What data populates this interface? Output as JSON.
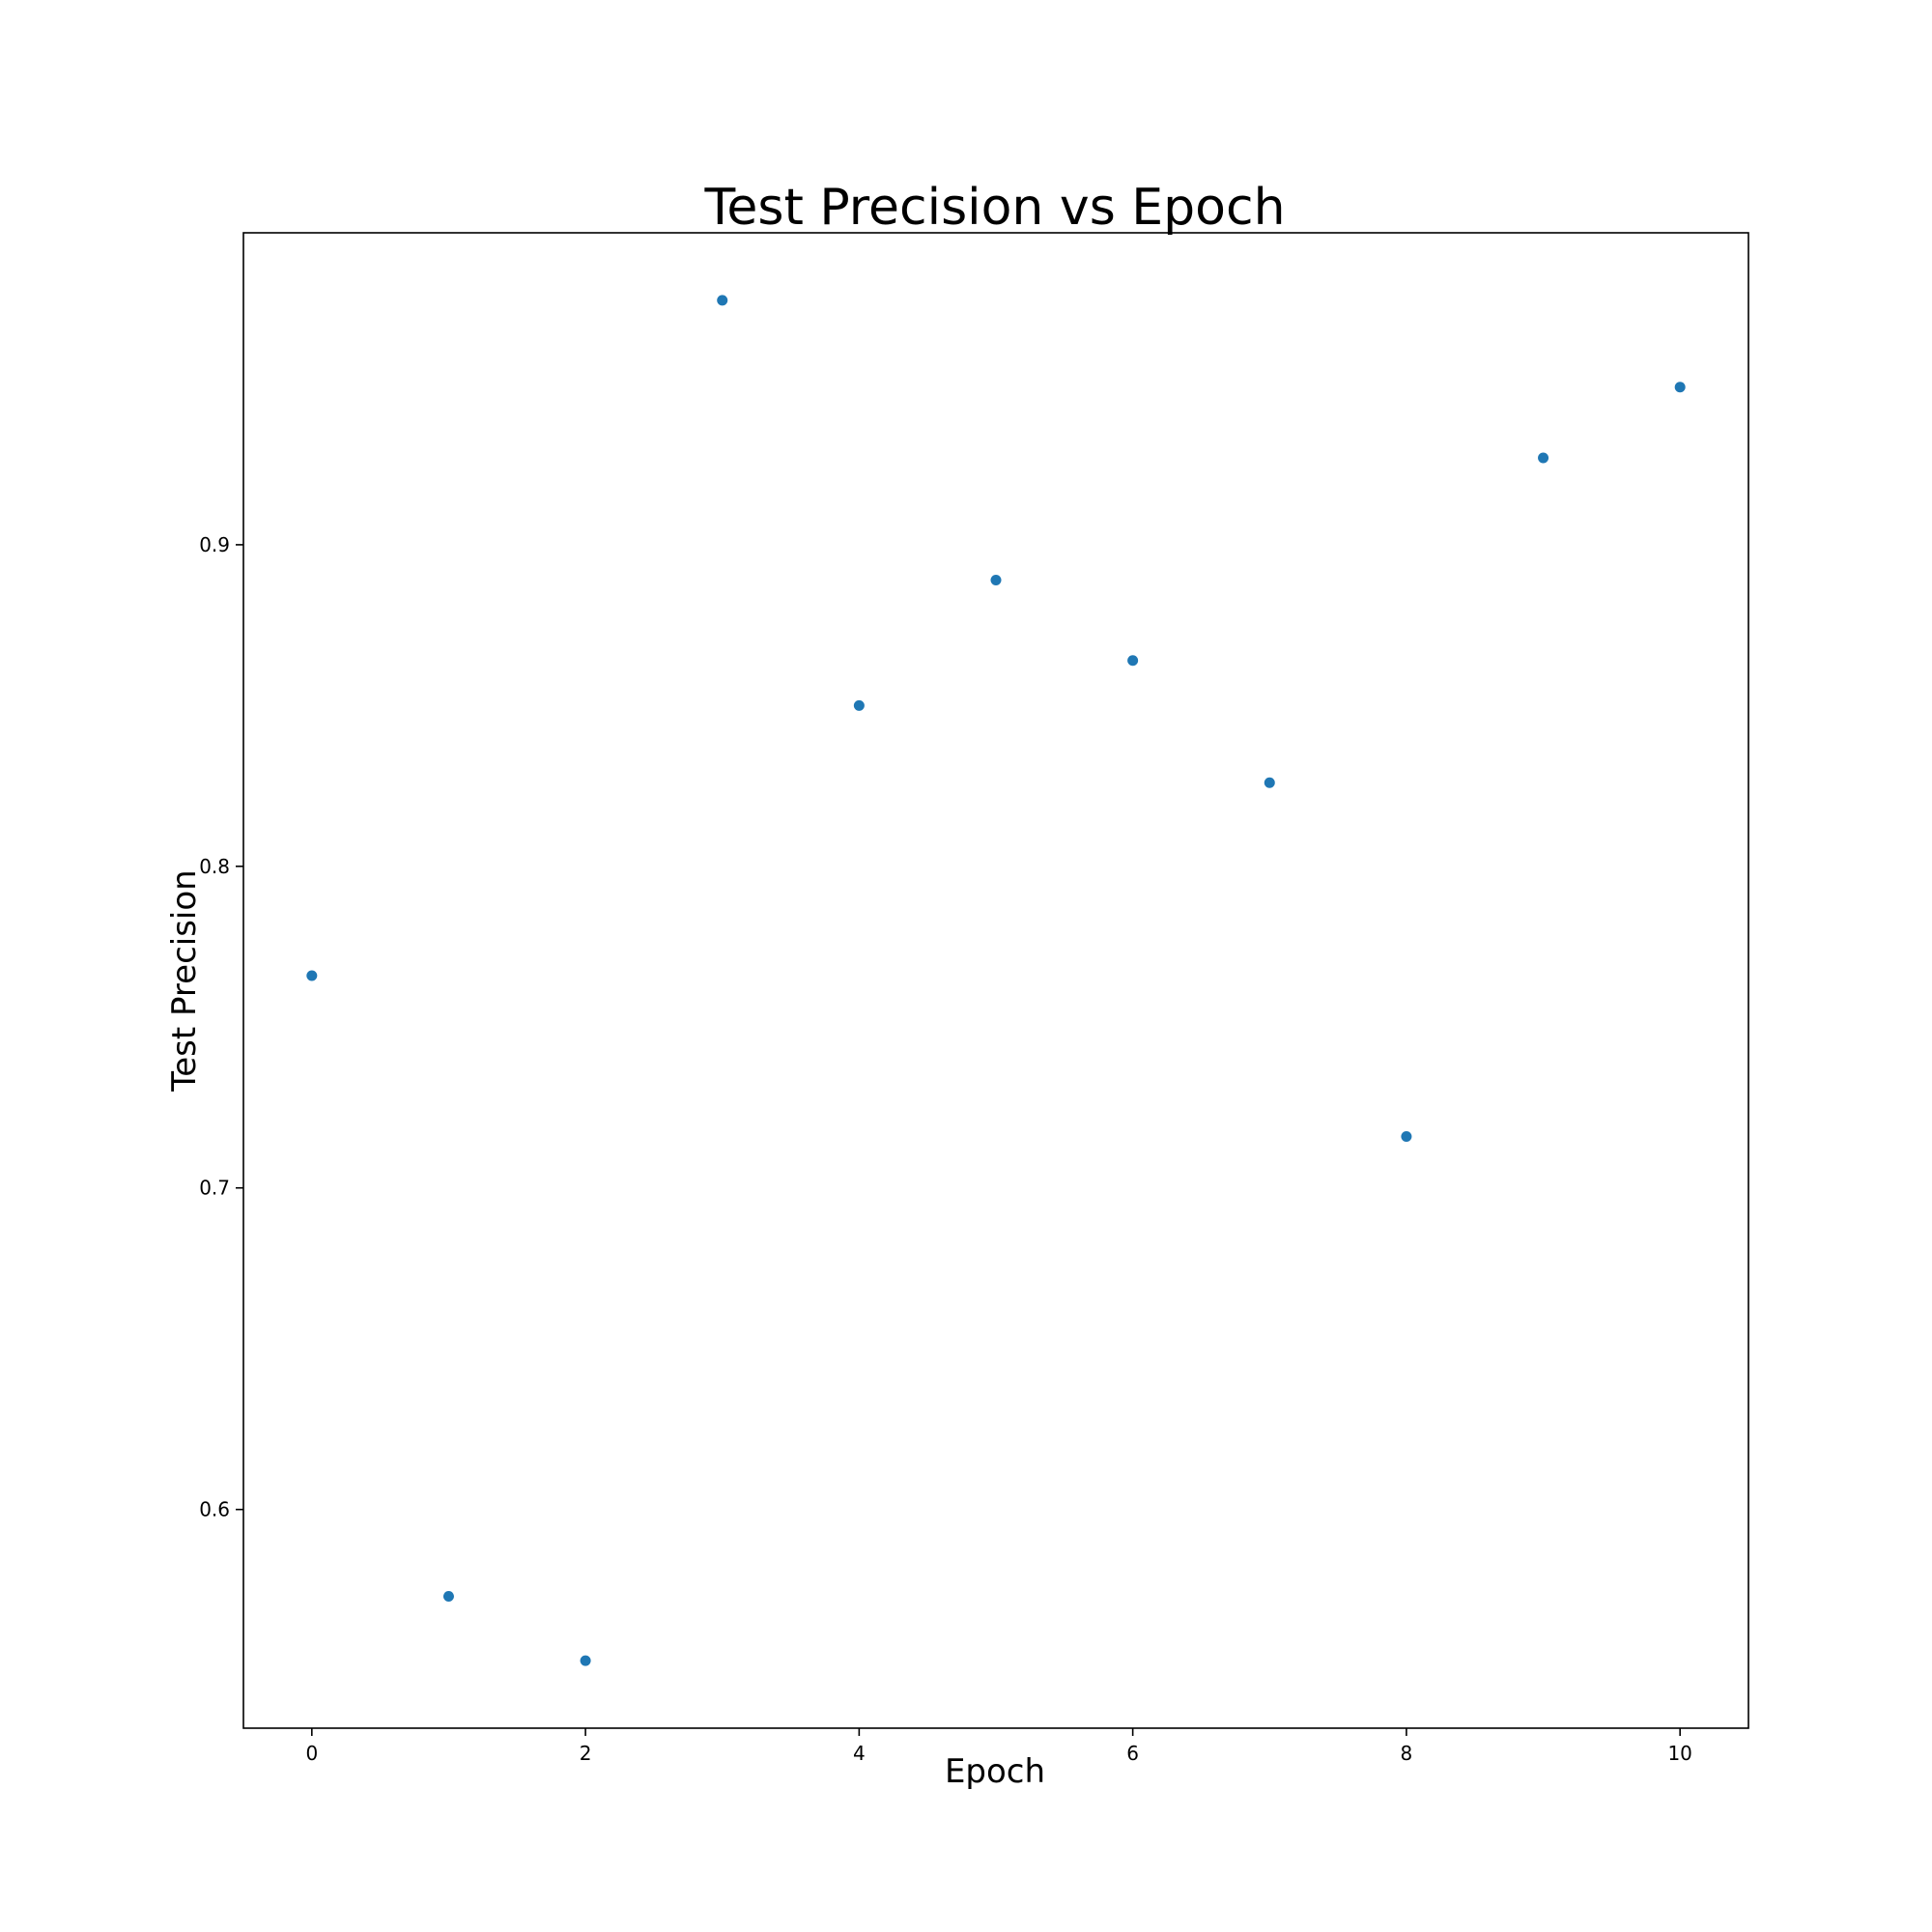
{
  "chart_data": {
    "type": "scatter",
    "title": "Test Precision vs Epoch",
    "xlabel": "Epoch",
    "ylabel": "Test Precision",
    "xlim": [
      -0.5,
      10.5
    ],
    "ylim": [
      0.532,
      0.997
    ],
    "xticks": [
      0,
      2,
      4,
      6,
      8,
      10
    ],
    "xtick_labels": [
      "0",
      "2",
      "4",
      "6",
      "8",
      "10"
    ],
    "yticks": [
      0.6,
      0.7,
      0.8,
      0.9
    ],
    "ytick_labels": [
      "0.6",
      "0.7",
      "0.8",
      "0.9"
    ],
    "grid": false,
    "color": "#1f77b4",
    "series": [
      {
        "x": [
          0,
          1,
          2,
          3,
          4,
          5,
          6,
          7,
          8,
          9,
          10
        ],
        "y": [
          0.766,
          0.573,
          0.553,
          0.976,
          0.85,
          0.889,
          0.864,
          0.826,
          0.716,
          0.927,
          0.949
        ]
      }
    ]
  }
}
